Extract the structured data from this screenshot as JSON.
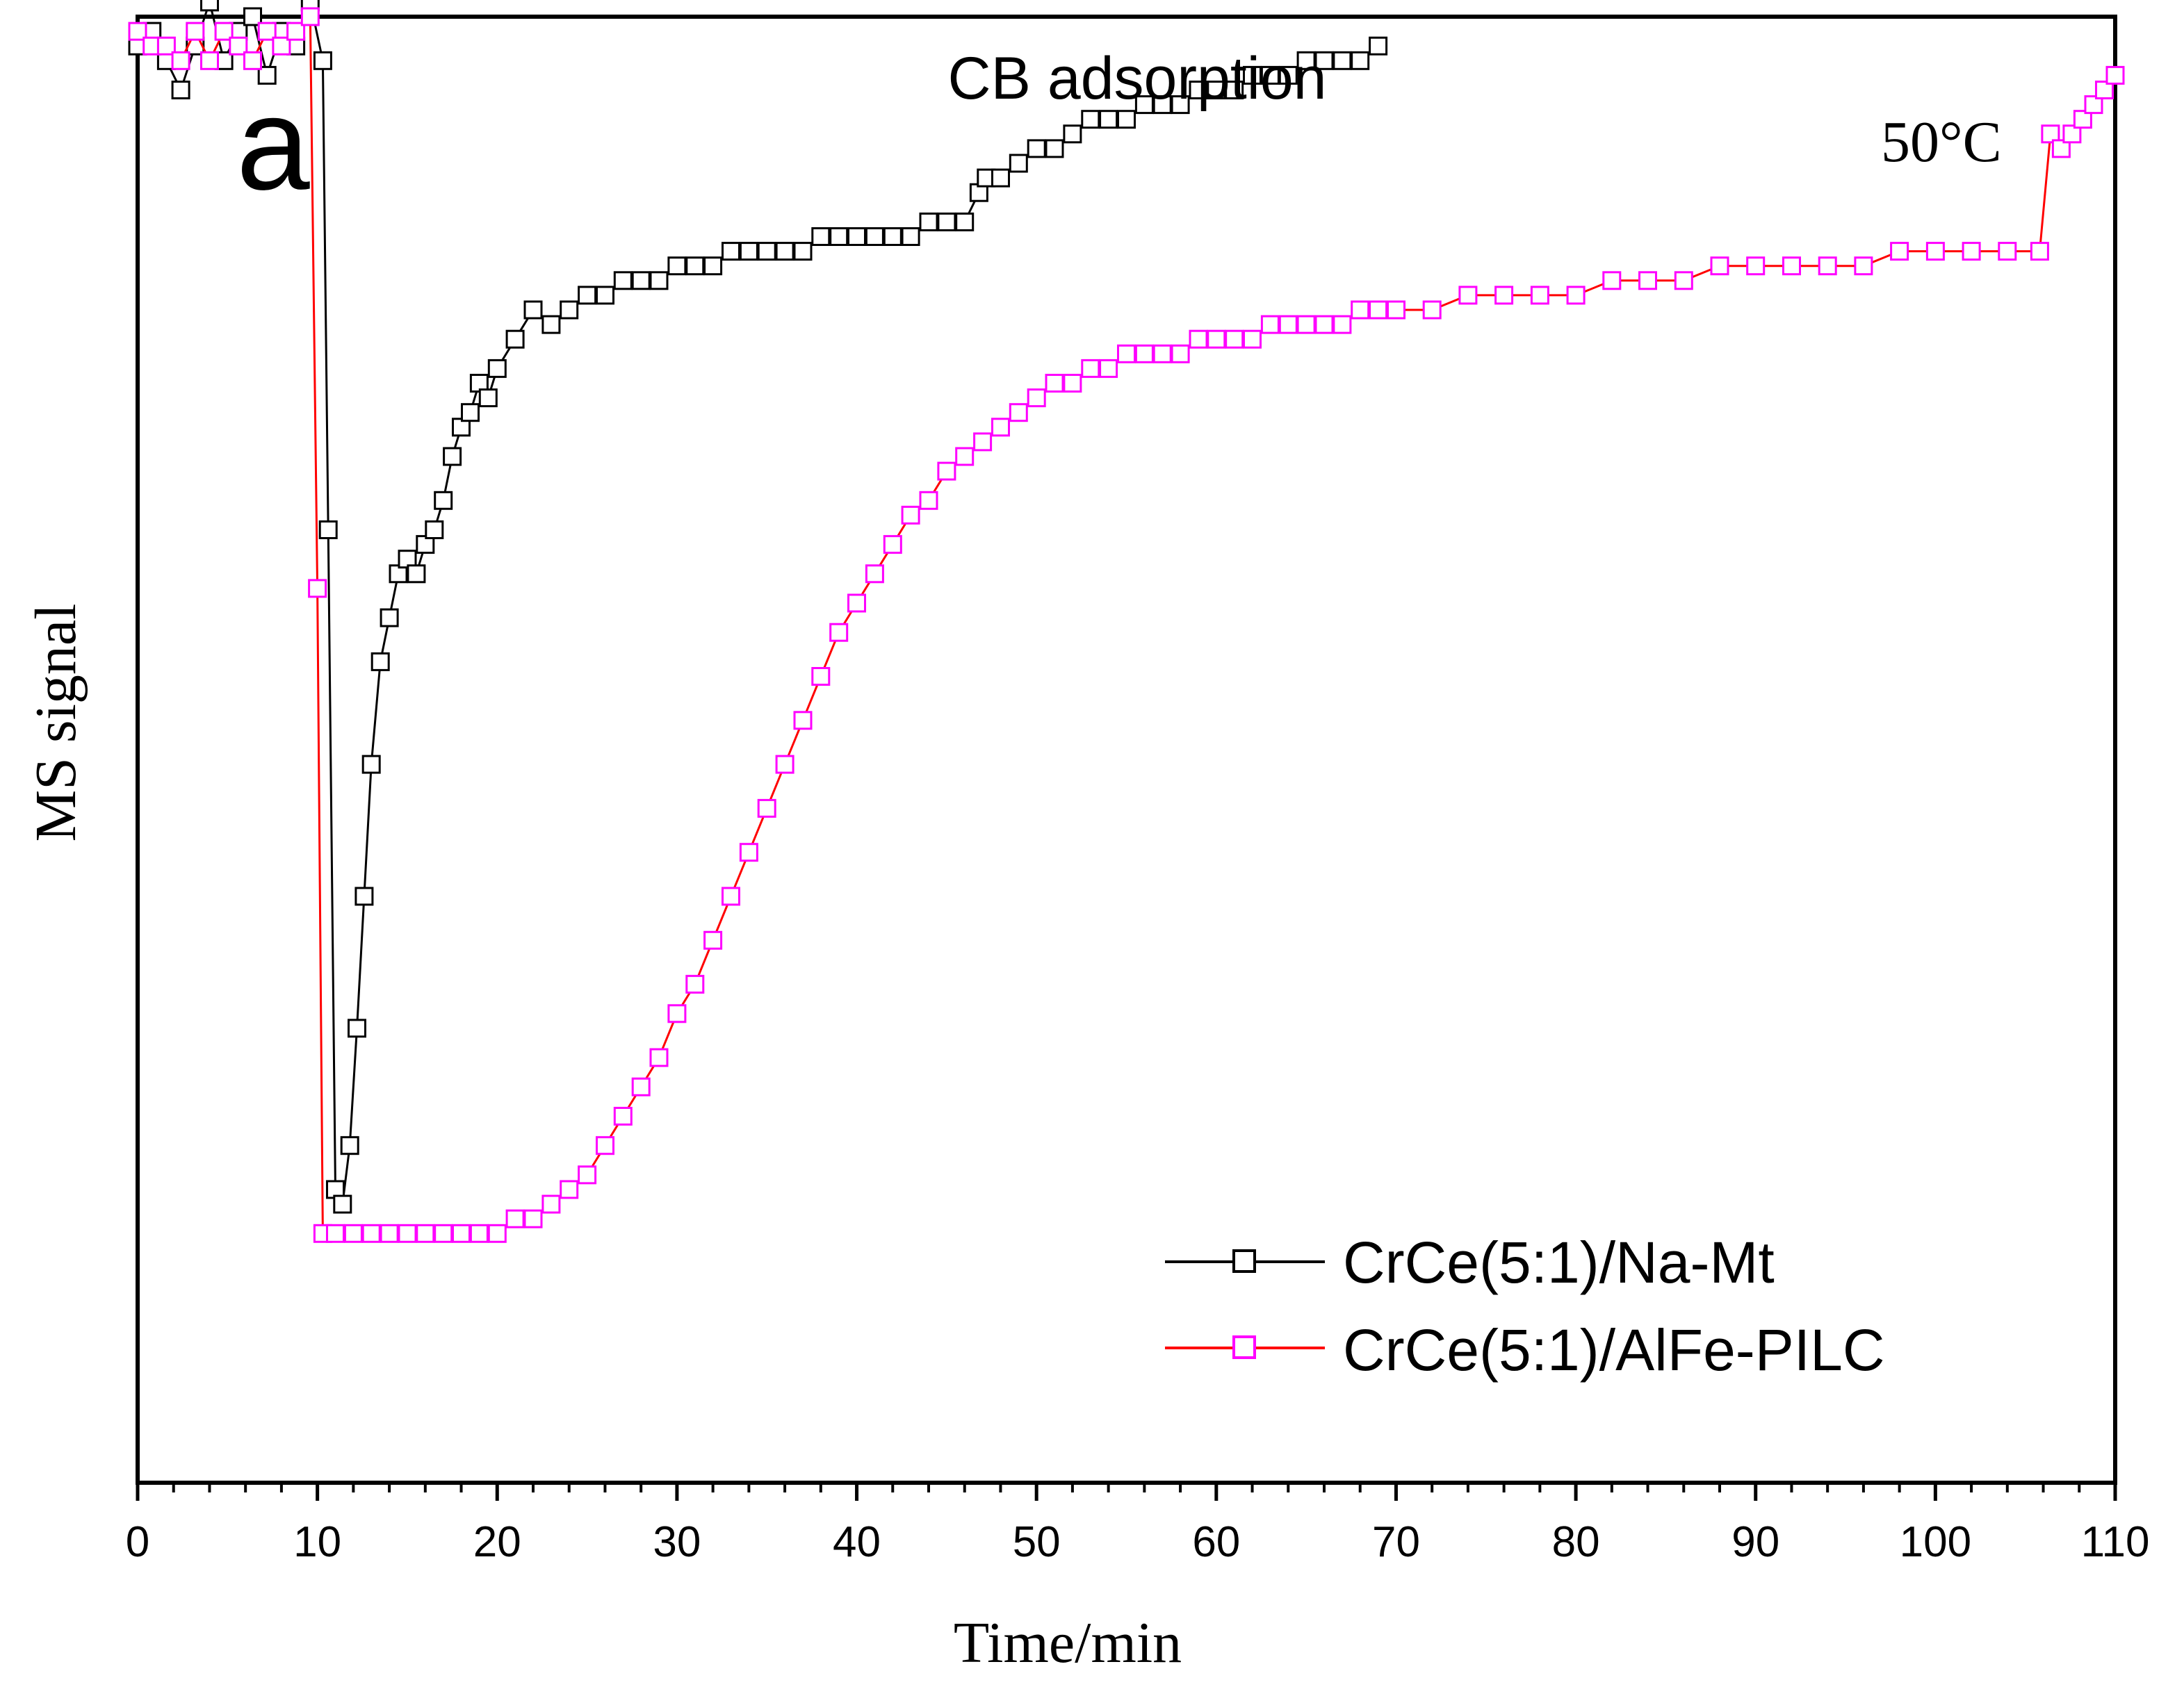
{
  "chart_data": {
    "type": "scatter",
    "title": "CB adsorption",
    "panel_label": "a",
    "annotation": "50",
    "annotation_unit": "°C",
    "xlabel": "Time/min",
    "ylabel": "MS signal",
    "xlim": [
      0,
      110
    ],
    "ylim": [
      0,
      100
    ],
    "y_tick_labels_shown": false,
    "xticks": [
      0,
      10,
      20,
      30,
      40,
      50,
      60,
      70,
      80,
      90,
      100,
      110
    ],
    "xtick_labels": [
      "0",
      "10",
      "20",
      "30",
      "40",
      "50",
      "60",
      "70",
      "80",
      "90",
      "100",
      "110"
    ],
    "legend_position": "bottom-right",
    "series": [
      {
        "name": "CrCe(5:1)/Na-Mt",
        "marker": "open-square",
        "marker_color": "#000000",
        "line_color": "#000000",
        "x": [
          0,
          0.8,
          1.6,
          2.4,
          3.2,
          4.0,
          4.8,
          5.6,
          6.4,
          7.2,
          8.0,
          8.8,
          9.6,
          10.3,
          10.6,
          11.0,
          11.4,
          11.8,
          12.2,
          12.6,
          13.0,
          13.5,
          14.0,
          14.5,
          15.0,
          15.5,
          16.0,
          16.5,
          17.0,
          17.5,
          18.0,
          18.5,
          19.0,
          19.5,
          20.0,
          21.0,
          22.0,
          23.0,
          24.0,
          25.0,
          26.0,
          27.0,
          28.0,
          29.0,
          30.0,
          31.0,
          32.0,
          33.0,
          34.0,
          35.0,
          36.0,
          37.0,
          38.0,
          39.0,
          40.0,
          41.0,
          42.0,
          43.0,
          44.0,
          45.0,
          46.0,
          46.8,
          47.2,
          48.0,
          49.0,
          50.0,
          51.0,
          52.0,
          53.0,
          54.0,
          55.0,
          56.0,
          57.0,
          58.0,
          59.0,
          60.0,
          61.0,
          62.0,
          63.0,
          64.0,
          65.0,
          66.0,
          67.0,
          68.0,
          69.0
        ],
        "y": [
          98,
          99,
          97,
          95,
          98,
          101,
          97,
          99,
          100,
          96,
          99,
          98,
          101,
          97,
          65,
          20,
          19,
          23,
          31,
          40,
          49,
          56,
          59,
          62,
          63,
          62,
          64,
          65,
          67,
          70,
          72,
          73,
          75,
          74,
          76,
          78,
          80,
          79,
          80,
          81,
          81,
          82,
          82,
          82,
          83,
          83,
          83,
          84,
          84,
          84,
          84,
          84,
          85,
          85,
          85,
          85,
          85,
          85,
          86,
          86,
          86,
          88,
          89,
          89,
          90,
          91,
          91,
          92,
          93,
          93,
          93,
          94,
          94,
          94,
          95,
          95,
          95,
          96,
          96,
          96,
          97,
          97,
          97,
          97,
          98
        ]
      },
      {
        "name": "CrCe(5:1)/AlFe-PILC",
        "marker": "open-square",
        "marker_color": "#ff00ff",
        "line_color": "#ff0000",
        "x": [
          0,
          0.8,
          1.6,
          2.4,
          3.2,
          4.0,
          4.8,
          5.6,
          6.4,
          7.2,
          8.0,
          8.8,
          9.6,
          10.0,
          10.3,
          11,
          12,
          13,
          14,
          15,
          16,
          17,
          18,
          19,
          20,
          21,
          22,
          23,
          24,
          25,
          26,
          27,
          28,
          29,
          30,
          31,
          32,
          33,
          34,
          35,
          36,
          37,
          38,
          39,
          40,
          41,
          42,
          43,
          44,
          45,
          46,
          47,
          48,
          49,
          50,
          51,
          52,
          53,
          54,
          55,
          56,
          57,
          58,
          59,
          60,
          61,
          62,
          63,
          64,
          65,
          66,
          67,
          68,
          69,
          70,
          72,
          74,
          76,
          78,
          80,
          82,
          84,
          86,
          88,
          90,
          92,
          94,
          96,
          98,
          100,
          102,
          104,
          105.8,
          106.4,
          107,
          107.6,
          108.2,
          108.8,
          109.4,
          110
        ],
        "y": [
          99,
          98,
          98,
          97,
          99,
          97,
          99,
          98,
          97,
          99,
          98,
          99,
          100,
          61,
          17,
          17,
          17,
          17,
          17,
          17,
          17,
          17,
          17,
          17,
          17,
          18,
          18,
          19,
          20,
          21,
          23,
          25,
          27,
          29,
          32,
          34,
          37,
          40,
          43,
          46,
          49,
          52,
          55,
          58,
          60,
          62,
          64,
          66,
          67,
          69,
          70,
          71,
          72,
          73,
          74,
          75,
          75,
          76,
          76,
          77,
          77,
          77,
          77,
          78,
          78,
          78,
          78,
          79,
          79,
          79,
          79,
          79,
          80,
          80,
          80,
          80,
          81,
          81,
          81,
          81,
          82,
          82,
          82,
          83,
          83,
          83,
          83,
          83,
          84,
          84,
          84,
          84,
          84,
          92,
          91,
          92,
          93,
          94,
          95,
          96
        ]
      }
    ]
  }
}
